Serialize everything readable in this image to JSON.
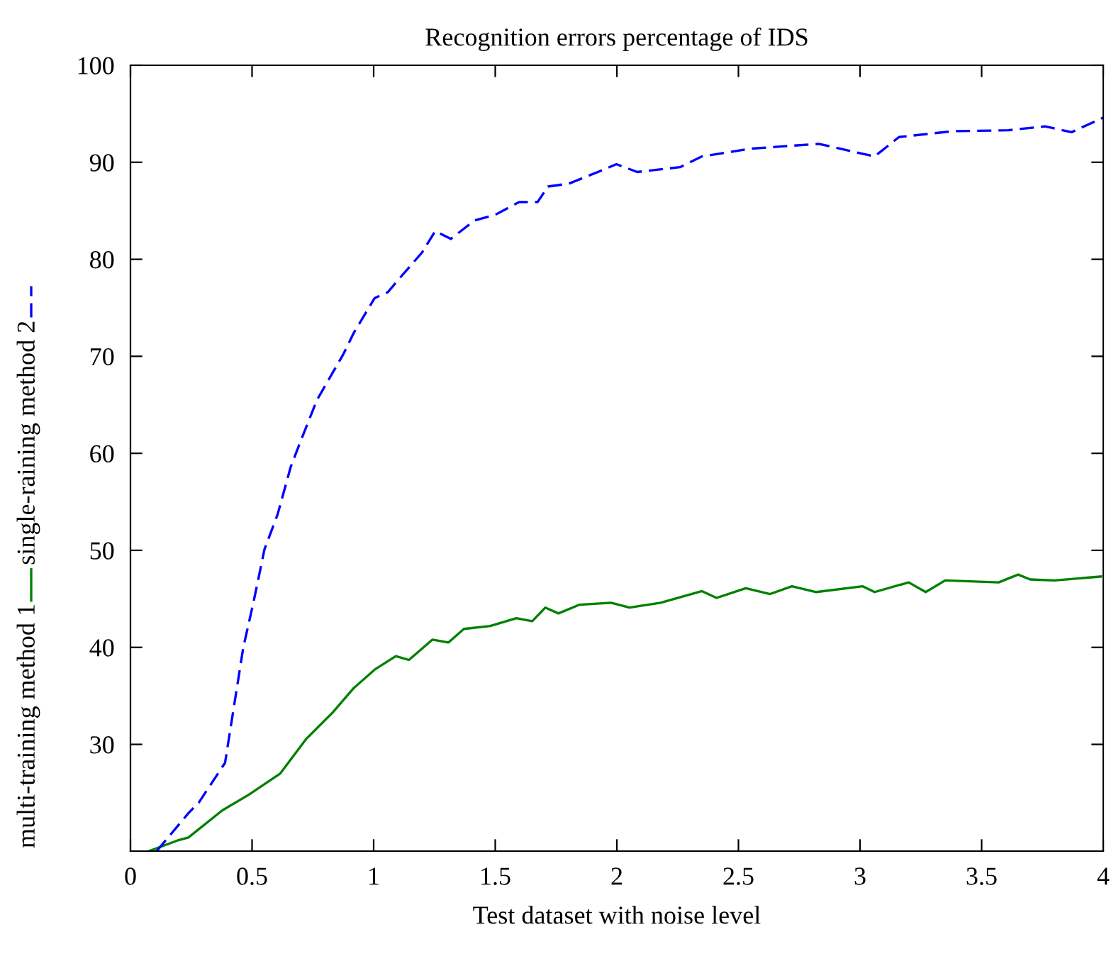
{
  "chart_data": {
    "type": "line",
    "title": "Recognition errors percentage of IDS",
    "xlabel": "Test dataset with noise level",
    "xlim": [
      0,
      4
    ],
    "xticks": [
      0,
      0.5,
      1,
      1.5,
      2,
      2.5,
      3,
      3.5,
      4
    ],
    "ylim": [
      19,
      100
    ],
    "yticks": [
      30,
      40,
      50,
      60,
      70,
      80,
      90,
      100
    ],
    "grid": false,
    "legend": "left",
    "series": [
      {
        "name": "multi-training method 1",
        "color": "#008000",
        "line_style": "solid",
        "x": [
          0.076,
          0.194,
          0.238,
          0.378,
          0.486,
          0.616,
          0.724,
          0.832,
          0.918,
          1.004,
          1.091,
          1.145,
          1.242,
          1.307,
          1.371,
          1.479,
          1.587,
          1.652,
          1.706,
          1.76,
          1.847,
          1.976,
          2.052,
          2.18,
          2.35,
          2.41,
          2.53,
          2.63,
          2.72,
          2.82,
          3.01,
          3.06,
          3.2,
          3.27,
          3.35,
          3.57,
          3.65,
          3.7,
          3.8,
          3.99
        ],
        "values": [
          19,
          20.1,
          20.4,
          23.2,
          24.8,
          27,
          30.6,
          33.3,
          35.8,
          37.7,
          39.1,
          38.7,
          40.8,
          40.5,
          41.9,
          42.2,
          43,
          42.7,
          44.1,
          43.5,
          44.4,
          44.6,
          44.1,
          44.6,
          45.8,
          45.1,
          46.1,
          45.5,
          46.3,
          45.7,
          46.3,
          45.7,
          46.7,
          45.7,
          46.9,
          46.7,
          47.5,
          47,
          46.9,
          47.3
        ]
      },
      {
        "name": "single-raining method 2",
        "color": "#0000ff",
        "line_style": "dashed",
        "x": [
          0.108,
          0.238,
          0.281,
          0.389,
          0.464,
          0.508,
          0.551,
          0.605,
          0.659,
          0.702,
          0.767,
          0.875,
          0.918,
          1.004,
          1.058,
          1.112,
          1.199,
          1.253,
          1.317,
          1.415,
          1.501,
          1.598,
          1.674,
          1.717,
          1.803,
          1.922,
          1.998,
          2.084,
          2.26,
          2.35,
          2.55,
          2.83,
          3.06,
          3.16,
          3.38,
          3.61,
          3.76,
          3.87,
          4.0
        ],
        "values": [
          19,
          22.9,
          24,
          28.1,
          40,
          44.9,
          50.1,
          53.7,
          58.6,
          61.4,
          65.5,
          70.2,
          72.4,
          76,
          76.6,
          78.2,
          80.7,
          82.9,
          82.1,
          84,
          84.6,
          85.9,
          85.9,
          87.5,
          87.8,
          89,
          89.8,
          89,
          89.5,
          90.6,
          91.4,
          91.9,
          90.6,
          92.6,
          93.2,
          93.3,
          93.7,
          93.1,
          94.6
        ]
      }
    ]
  }
}
